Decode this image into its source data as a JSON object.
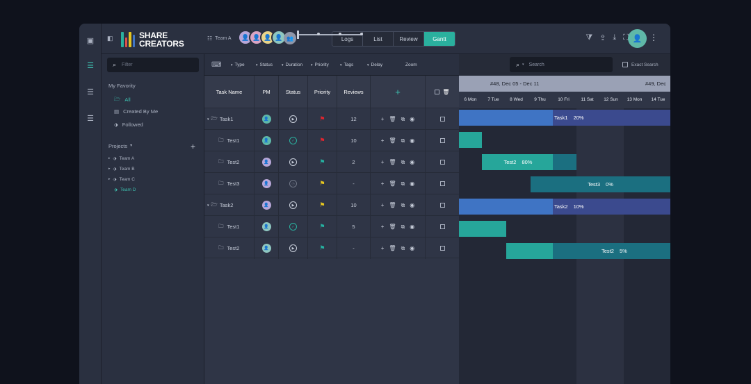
{
  "brand": {
    "line1": "SHARE",
    "line2": "CREATORS"
  },
  "header": {
    "team_label": "Team A",
    "tabs": [
      {
        "label": "Logs"
      },
      {
        "label": "List"
      },
      {
        "label": "Review"
      },
      {
        "label": "Gantt"
      }
    ],
    "active_tab": "Gantt"
  },
  "sidebar": {
    "filter_placeholder": "Filter",
    "my_favority_label": "My Favority",
    "favorites": [
      {
        "label": "All"
      },
      {
        "label": "Created By Me"
      },
      {
        "label": "Followed"
      }
    ],
    "projects_label": "Projects",
    "teams": [
      {
        "label": "Team A"
      },
      {
        "label": "Team B"
      },
      {
        "label": "Team C"
      },
      {
        "label": "Team D"
      }
    ]
  },
  "filterbar": {
    "filters": [
      {
        "label": "Type"
      },
      {
        "label": "Status"
      },
      {
        "label": "Duration"
      },
      {
        "label": "Priority"
      },
      {
        "label": "Tags"
      },
      {
        "label": "Delay"
      }
    ],
    "zoom_label": "Zoom",
    "search_placeholder": "Search",
    "exact_search_label": "Exact Search"
  },
  "table": {
    "columns": {
      "task_name": "Task Name",
      "pm": "PM",
      "status": "Status",
      "priority": "Priority",
      "reviews": "Reviews"
    },
    "rows": [
      {
        "name": "Task1",
        "reviews": "12"
      },
      {
        "name": "Test1",
        "reviews": "10"
      },
      {
        "name": "Test2",
        "reviews": "2"
      },
      {
        "name": "Test3",
        "reviews": "-"
      },
      {
        "name": "Task2",
        "reviews": "10"
      },
      {
        "name": "Test1",
        "reviews": "5"
      },
      {
        "name": "Test2",
        "reviews": "-"
      }
    ]
  },
  "gantt": {
    "weeks": [
      {
        "label": "#48, Dec 05 - Dec 11"
      },
      {
        "label": "#49, Dec"
      }
    ],
    "days": [
      {
        "label": "6 Mon"
      },
      {
        "label": "7 Tue"
      },
      {
        "label": "8 Wed"
      },
      {
        "label": "9 Thu"
      },
      {
        "label": "10 Fri"
      },
      {
        "label": "11 Sat"
      },
      {
        "label": "12 Sun"
      },
      {
        "label": "13 Mon"
      },
      {
        "label": "14 Tue"
      }
    ],
    "bars": [
      {
        "label": "Task1",
        "progress": "20%"
      },
      {
        "label": "",
        "progress": ""
      },
      {
        "label": "Test2",
        "progress": "80%"
      },
      {
        "label": "Test3",
        "progress": "0%"
      },
      {
        "label": "Task2",
        "progress": "10%"
      },
      {
        "label": "",
        "progress": ""
      },
      {
        "label": "Test2",
        "progress": "5%"
      }
    ]
  },
  "colors": {
    "accent": "#2ab09e",
    "bg": "#262b38",
    "bar_blue": "#3f74c4",
    "bar_navy": "#3b4a8e",
    "bar_teal": "#26a69a",
    "bar_dark_teal": "#1b6f80",
    "flag_red": "#e0252f",
    "flag_teal": "#26b0a0",
    "flag_yellow": "#e6c620"
  }
}
